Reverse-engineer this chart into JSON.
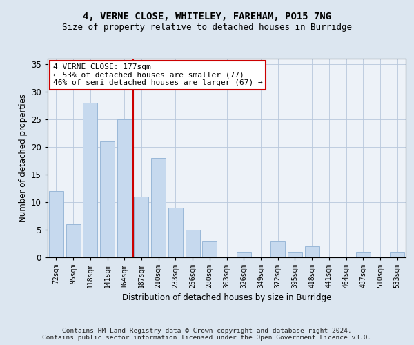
{
  "title1": "4, VERNE CLOSE, WHITELEY, FAREHAM, PO15 7NG",
  "title2": "Size of property relative to detached houses in Burridge",
  "xlabel": "Distribution of detached houses by size in Burridge",
  "ylabel": "Number of detached properties",
  "categories": [
    "72sqm",
    "95sqm",
    "118sqm",
    "141sqm",
    "164sqm",
    "187sqm",
    "210sqm",
    "233sqm",
    "256sqm",
    "280sqm",
    "303sqm",
    "326sqm",
    "349sqm",
    "372sqm",
    "395sqm",
    "418sqm",
    "441sqm",
    "464sqm",
    "487sqm",
    "510sqm",
    "533sqm"
  ],
  "values": [
    12,
    6,
    28,
    21,
    25,
    11,
    18,
    9,
    5,
    3,
    0,
    1,
    0,
    3,
    1,
    2,
    0,
    0,
    1,
    0,
    1
  ],
  "bar_color": "#c6d9ee",
  "bar_edge_color": "#9ab8d8",
  "vline_x": 4.5,
  "vline_color": "#cc0000",
  "annotation_text": "4 VERNE CLOSE: 177sqm\n← 53% of detached houses are smaller (77)\n46% of semi-detached houses are larger (67) →",
  "annotation_box_color": "#ffffff",
  "annotation_box_edge_color": "#cc0000",
  "ylim": [
    0,
    36
  ],
  "yticks": [
    0,
    5,
    10,
    15,
    20,
    25,
    30,
    35
  ],
  "bg_color": "#dce6f0",
  "plot_bg_color": "#edf2f8",
  "footer": "Contains HM Land Registry data © Crown copyright and database right 2024.\nContains public sector information licensed under the Open Government Licence v3.0.",
  "title_fontsize": 10,
  "subtitle_fontsize": 9,
  "ylabel_text": "Number of detached properties"
}
